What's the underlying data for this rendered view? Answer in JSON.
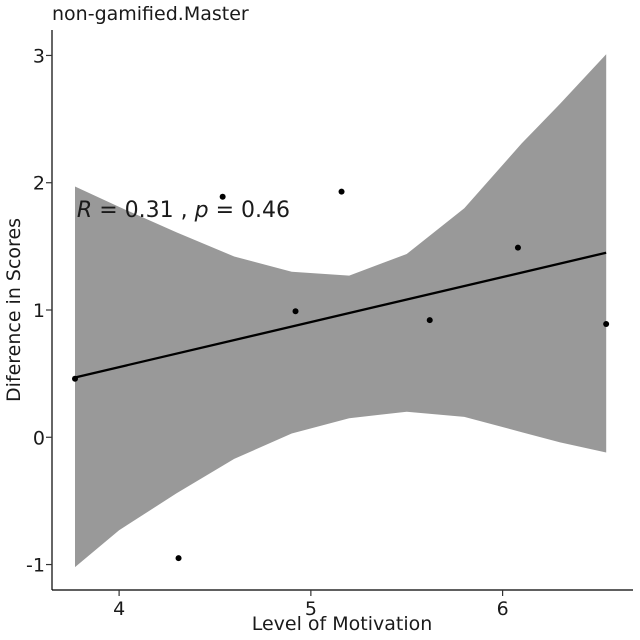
{
  "chart_data": {
    "type": "scatter",
    "title": "non-gamified.Master",
    "xlabel": "Level of Motivation",
    "ylabel": "Diference in Scores",
    "xlim": [
      3.65,
      6.68
    ],
    "ylim": [
      -1.2,
      3.2
    ],
    "x_ticks": [
      4,
      5,
      6
    ],
    "y_ticks": [
      -1,
      0,
      1,
      2,
      3
    ],
    "grid": false,
    "points": [
      {
        "x": 3.77,
        "y": 0.46
      },
      {
        "x": 4.31,
        "y": -0.95
      },
      {
        "x": 4.54,
        "y": 1.89
      },
      {
        "x": 4.92,
        "y": 0.99
      },
      {
        "x": 5.16,
        "y": 1.93
      },
      {
        "x": 5.62,
        "y": 0.92
      },
      {
        "x": 6.08,
        "y": 1.49
      },
      {
        "x": 6.54,
        "y": 0.89
      }
    ],
    "regression_line": {
      "x": [
        3.77,
        6.54
      ],
      "y": [
        0.47,
        1.45
      ]
    },
    "confidence_band": {
      "x": [
        3.77,
        4.0,
        4.3,
        4.6,
        4.9,
        5.2,
        5.5,
        5.8,
        6.1,
        6.3,
        6.54
      ],
      "upper": [
        1.97,
        1.81,
        1.61,
        1.42,
        1.3,
        1.27,
        1.44,
        1.8,
        2.31,
        2.62,
        3.01
      ],
      "lower": [
        -1.02,
        -0.73,
        -0.44,
        -0.17,
        0.03,
        0.15,
        0.2,
        0.16,
        0.04,
        -0.04,
        -0.12
      ]
    },
    "annotation": {
      "R_symbol": "R",
      "R_text": " = 0.31 , ",
      "p_symbol": "p",
      "p_text": " = 0.46",
      "x": 3.78,
      "y": 1.73
    },
    "colors": {
      "band": "#999999",
      "line": "#000000",
      "points": "#000000"
    }
  }
}
